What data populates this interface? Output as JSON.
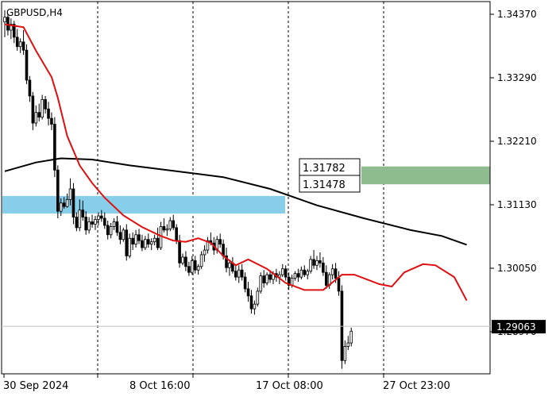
{
  "window": {
    "title": "GBPUSD,H4"
  },
  "colors": {
    "background": "#ffffff",
    "frame": "#000000",
    "grid": "#000000",
    "candle": "#000000",
    "ma_fast": "#e01010",
    "ma_slow": "#000000",
    "zone_blue": "#87ceeb",
    "zone_green": "#8fbc8f",
    "price_line": "#c0c0c0",
    "price_label_bg": "#000000",
    "price_label_text": "#ffffff"
  },
  "price_axis": {
    "ticks": [
      "1.34370",
      "1.33290",
      "1.32210",
      "1.31130",
      "1.30050",
      "1.28970"
    ]
  },
  "time_axis": {
    "labels": [
      "30 Sep 2024",
      "8 Oct 16:00",
      "17 Oct 08:00",
      "27 Oct 23:00"
    ]
  },
  "current_price": {
    "label": "1.29063",
    "value": 1.29063
  },
  "zones": {
    "green": {
      "upper_label": "1.31782",
      "lower_label": "1.31478",
      "upper": 1.31782,
      "lower": 1.31478
    },
    "blue": {
      "upper": 1.3128,
      "lower": 1.3098
    }
  },
  "chart_data": {
    "type": "candlestick",
    "symbol": "GBPUSD",
    "timeframe": "H4",
    "ylim": [
      1.2834,
      1.3468
    ],
    "grid": "vertical dashed at time labels",
    "candles_ohlc": [
      [
        1.3424,
        1.3444,
        1.3398,
        1.3432
      ],
      [
        1.3432,
        1.3438,
        1.3401,
        1.341
      ],
      [
        1.341,
        1.343,
        1.3395,
        1.342
      ],
      [
        1.342,
        1.3426,
        1.3388,
        1.3398
      ],
      [
        1.3398,
        1.3412,
        1.3375,
        1.3382
      ],
      [
        1.3382,
        1.3396,
        1.3371,
        1.339
      ],
      [
        1.339,
        1.341,
        1.3368,
        1.3376
      ],
      [
        1.3376,
        1.3386,
        1.3318,
        1.3325
      ],
      [
        1.3325,
        1.3332,
        1.3288,
        1.3298
      ],
      [
        1.3298,
        1.3305,
        1.324,
        1.3252
      ],
      [
        1.3252,
        1.3282,
        1.3246,
        1.327
      ],
      [
        1.327,
        1.3285,
        1.3255,
        1.3262
      ],
      [
        1.3262,
        1.33,
        1.3258,
        1.3292
      ],
      [
        1.3292,
        1.3298,
        1.3268,
        1.3276
      ],
      [
        1.3276,
        1.3288,
        1.3248,
        1.326
      ],
      [
        1.326,
        1.327,
        1.324,
        1.325
      ],
      [
        1.325,
        1.3262,
        1.316,
        1.3172
      ],
      [
        1.3172,
        1.318,
        1.309,
        1.3102
      ],
      [
        1.3102,
        1.3124,
        1.3094,
        1.3116
      ],
      [
        1.3116,
        1.3126,
        1.3106,
        1.311
      ],
      [
        1.311,
        1.3132,
        1.3108,
        1.3122
      ],
      [
        1.3122,
        1.3158,
        1.3112,
        1.314
      ],
      [
        1.314,
        1.315,
        1.308,
        1.3092
      ],
      [
        1.3092,
        1.31,
        1.3068,
        1.3074
      ],
      [
        1.3074,
        1.3122,
        1.3068,
        1.3104
      ],
      [
        1.3104,
        1.312,
        1.3086,
        1.3092
      ],
      [
        1.3092,
        1.3102,
        1.3062,
        1.307
      ],
      [
        1.307,
        1.3092,
        1.3064,
        1.3084
      ],
      [
        1.3084,
        1.3096,
        1.3074,
        1.308
      ],
      [
        1.308,
        1.3094,
        1.307,
        1.3088
      ],
      [
        1.3088,
        1.31,
        1.3078,
        1.3094
      ],
      [
        1.3094,
        1.3104,
        1.3084,
        1.309
      ],
      [
        1.309,
        1.31,
        1.3072,
        1.3078
      ],
      [
        1.3078,
        1.3086,
        1.3054,
        1.3062
      ],
      [
        1.3062,
        1.3082,
        1.3056,
        1.3076
      ],
      [
        1.3076,
        1.309,
        1.307,
        1.3084
      ],
      [
        1.3084,
        1.3094,
        1.306,
        1.3066
      ],
      [
        1.3066,
        1.3078,
        1.3046,
        1.3054
      ],
      [
        1.3054,
        1.3074,
        1.305,
        1.307
      ],
      [
        1.307,
        1.308,
        1.3018,
        1.3026
      ],
      [
        1.3026,
        1.3064,
        1.3022,
        1.3056
      ],
      [
        1.3056,
        1.3066,
        1.3036,
        1.3046
      ],
      [
        1.3046,
        1.307,
        1.304,
        1.3062
      ],
      [
        1.3062,
        1.3072,
        1.3046,
        1.3052
      ],
      [
        1.3052,
        1.3062,
        1.3034,
        1.304
      ],
      [
        1.304,
        1.306,
        1.3036,
        1.3054
      ],
      [
        1.3054,
        1.3064,
        1.304,
        1.3046
      ],
      [
        1.3046,
        1.3056,
        1.3036,
        1.305
      ],
      [
        1.305,
        1.3062,
        1.3044,
        1.3056
      ],
      [
        1.3056,
        1.3074,
        1.3036,
        1.304
      ],
      [
        1.304,
        1.3084,
        1.3036,
        1.3076
      ],
      [
        1.3076,
        1.309,
        1.3066,
        1.307
      ],
      [
        1.307,
        1.308,
        1.306,
        1.3072
      ],
      [
        1.3072,
        1.3092,
        1.3068,
        1.3086
      ],
      [
        1.3086,
        1.3096,
        1.307,
        1.3074
      ],
      [
        1.3074,
        1.308,
        1.3046,
        1.3052
      ],
      [
        1.3052,
        1.3062,
        1.3006,
        1.3014
      ],
      [
        1.3014,
        1.303,
        1.301,
        1.3024
      ],
      [
        1.3024,
        1.3034,
        1.3,
        1.3008
      ],
      [
        1.3008,
        1.3016,
        1.2992,
        1.2998
      ],
      [
        1.2998,
        1.3026,
        1.2994,
        1.3018
      ],
      [
        1.3018,
        1.3026,
        1.2996,
        1.3002
      ],
      [
        1.3002,
        1.3012,
        1.2994,
        1.3008
      ],
      [
        1.3008,
        1.3034,
        1.3004,
        1.3028
      ],
      [
        1.3028,
        1.3044,
        1.3016,
        1.3036
      ],
      [
        1.3036,
        1.3058,
        1.303,
        1.3052
      ],
      [
        1.3052,
        1.3066,
        1.3044,
        1.3048
      ],
      [
        1.3048,
        1.3058,
        1.3028,
        1.3036
      ],
      [
        1.3036,
        1.306,
        1.303,
        1.3054
      ],
      [
        1.3054,
        1.3064,
        1.304,
        1.3046
      ],
      [
        1.3046,
        1.3054,
        1.302,
        1.3026
      ],
      [
        1.3026,
        1.304,
        1.2998,
        1.3006
      ],
      [
        1.3006,
        1.302,
        1.2992,
        1.3014
      ],
      [
        1.3014,
        1.3024,
        1.2996,
        1.3
      ],
      [
        1.3,
        1.3012,
        1.2984,
        1.299
      ],
      [
        1.299,
        1.301,
        1.298,
        1.3002
      ],
      [
        1.3002,
        1.3012,
        1.2984,
        1.299
      ],
      [
        1.299,
        1.2998,
        1.2964,
        1.297
      ],
      [
        1.297,
        1.2982,
        1.2948,
        1.2958
      ],
      [
        1.2958,
        1.2968,
        1.2928,
        1.2936
      ],
      [
        1.2936,
        1.295,
        1.2926,
        1.2944
      ],
      [
        1.2944,
        1.2972,
        1.294,
        1.2966
      ],
      [
        1.2966,
        1.2998,
        1.2962,
        1.2992
      ],
      [
        1.2992,
        1.3002,
        1.2972,
        1.298
      ],
      [
        1.298,
        1.2998,
        1.2976,
        1.2994
      ],
      [
        1.2994,
        1.3002,
        1.298,
        1.2986
      ],
      [
        1.2986,
        1.3,
        1.2978,
        1.2996
      ],
      [
        1.2996,
        1.3004,
        1.2982,
        1.299
      ],
      [
        1.299,
        1.3,
        1.2978,
        1.2994
      ],
      [
        1.2994,
        1.3012,
        1.299,
        1.3004
      ],
      [
        1.3004,
        1.301,
        1.2984,
        1.299
      ],
      [
        1.299,
        1.2998,
        1.2968,
        1.2976
      ],
      [
        1.2976,
        1.2994,
        1.2972,
        1.2988
      ],
      [
        1.2988,
        1.3,
        1.2984,
        1.2996
      ],
      [
        1.2996,
        1.3004,
        1.2982,
        1.299
      ],
      [
        1.299,
        1.3008,
        1.2986,
        1.3002
      ],
      [
        1.3002,
        1.301,
        1.299,
        1.2994
      ],
      [
        1.2994,
        1.3004,
        1.2986,
        1.3
      ],
      [
        1.3,
        1.3026,
        1.2996,
        1.302
      ],
      [
        1.302,
        1.3036,
        1.3004,
        1.301
      ],
      [
        1.301,
        1.3026,
        1.3002,
        1.3018
      ],
      [
        1.3018,
        1.3032,
        1.3006,
        1.3014
      ],
      [
        1.3014,
        1.3024,
        1.2992,
        1.2998
      ],
      [
        1.2998,
        1.301,
        1.297,
        1.2976
      ],
      [
        1.2976,
        1.2998,
        1.297,
        1.2994
      ],
      [
        1.2994,
        1.3012,
        1.2986,
        1.3004
      ],
      [
        1.3004,
        1.3014,
        1.298,
        1.2988
      ],
      [
        1.2988,
        1.3,
        1.2958,
        1.2966
      ],
      [
        1.2966,
        1.2976,
        1.2834,
        1.2848
      ],
      [
        1.2848,
        1.2882,
        1.2842,
        1.2872
      ],
      [
        1.2872,
        1.289,
        1.2866,
        1.2878
      ],
      [
        1.2878,
        1.2904,
        1.2872,
        1.2898
      ]
    ],
    "ma_fast_points": [
      [
        0,
        1.342
      ],
      [
        6,
        1.3415
      ],
      [
        10,
        1.3375
      ],
      [
        15,
        1.333
      ],
      [
        17,
        1.3295
      ],
      [
        20,
        1.323
      ],
      [
        24,
        1.318
      ],
      [
        28,
        1.315
      ],
      [
        32,
        1.3125
      ],
      [
        38,
        1.3095
      ],
      [
        44,
        1.3075
      ],
      [
        50,
        1.306
      ],
      [
        54,
        1.3052
      ],
      [
        58,
        1.305
      ],
      [
        62,
        1.3056
      ],
      [
        66,
        1.3048
      ],
      [
        70,
        1.3026
      ],
      [
        74,
        1.301
      ],
      [
        78,
        1.302
      ],
      [
        84,
        1.3004
      ],
      [
        90,
        1.298
      ],
      [
        96,
        1.2968
      ],
      [
        102,
        1.2968
      ],
      [
        108,
        1.2994
      ],
      [
        112,
        1.2994
      ],
      [
        116,
        1.2986
      ],
      [
        120,
        1.2978
      ],
      [
        124,
        1.2974
      ],
      [
        128,
        1.2998
      ],
      [
        134,
        1.3012
      ],
      [
        138,
        1.301
      ],
      [
        144,
        1.299
      ],
      [
        148,
        1.295
      ]
    ],
    "ma_slow_points": [
      [
        0,
        1.317
      ],
      [
        10,
        1.3185
      ],
      [
        18,
        1.3192
      ],
      [
        28,
        1.319
      ],
      [
        40,
        1.318
      ],
      [
        55,
        1.317
      ],
      [
        70,
        1.316
      ],
      [
        85,
        1.314
      ],
      [
        100,
        1.3112
      ],
      [
        115,
        1.309
      ],
      [
        130,
        1.307
      ],
      [
        140,
        1.306
      ],
      [
        148,
        1.3045
      ]
    ]
  }
}
